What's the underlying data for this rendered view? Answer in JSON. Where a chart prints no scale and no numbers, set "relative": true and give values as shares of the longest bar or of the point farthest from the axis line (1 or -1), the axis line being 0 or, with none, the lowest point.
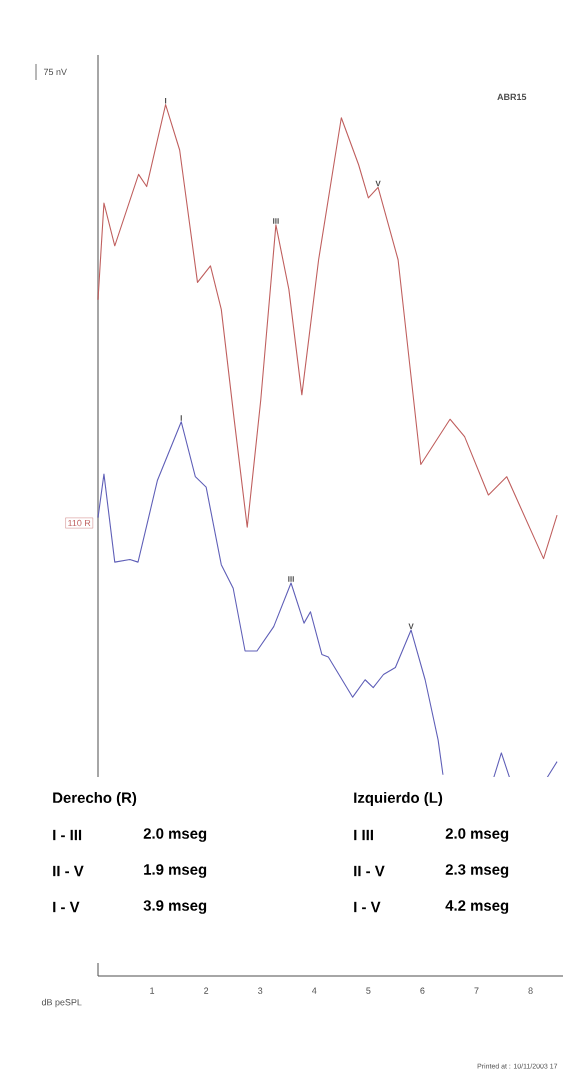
{
  "chart_data": {
    "type": "line",
    "title": "ABR15",
    "relative": true,
    "xlabel": "dB peSPL",
    "xlim": [
      0,
      8.6
    ],
    "xticks": [
      1,
      2,
      3,
      4,
      5,
      6,
      7,
      8
    ],
    "grid": false,
    "marker": "none",
    "line_style": "solid",
    "series": [
      {
        "color": "#c0605f",
        "x": [
          0,
          0.11,
          0.31,
          0.75,
          0.9,
          1.25,
          1.51,
          1.84,
          2.08,
          2.28,
          2.52,
          2.76,
          3.01,
          3.29,
          3.53,
          3.77,
          4.08,
          4.5,
          4.82,
          5.0,
          5.18,
          5.55,
          5.97,
          6.51,
          6.78,
          7.22,
          7.56,
          8.24,
          8.49
        ],
        "values": [
          0.776,
          0.887,
          0.838,
          0.92,
          0.906,
          1.0,
          0.948,
          0.796,
          0.815,
          0.765,
          0.638,
          0.515,
          0.661,
          0.862,
          0.788,
          0.667,
          0.822,
          0.985,
          0.931,
          0.893,
          0.905,
          0.822,
          0.587,
          0.639,
          0.619,
          0.552,
          0.573,
          0.479,
          0.529
        ]
      },
      {
        "color": "#6060b8",
        "x": [
          0,
          0.11,
          0.31,
          0.59,
          0.74,
          1.1,
          1.54,
          1.8,
          2.0,
          2.28,
          2.5,
          2.72,
          2.94,
          3.25,
          3.57,
          3.81,
          3.93,
          4.14,
          4.26,
          4.71,
          4.94,
          5.09,
          5.28,
          5.5,
          5.79,
          6.05,
          6.29,
          6.38,
          null,
          7.32,
          7.46,
          7.61,
          null,
          8.31,
          8.49
        ],
        "values": [
          0.526,
          0.576,
          0.475,
          0.478,
          0.475,
          0.569,
          0.636,
          0.573,
          0.561,
          0.472,
          0.445,
          0.373,
          0.373,
          0.401,
          0.451,
          0.405,
          0.418,
          0.369,
          0.366,
          0.32,
          0.34,
          0.331,
          0.346,
          0.354,
          0.397,
          0.34,
          0.271,
          0.231,
          null,
          0.228,
          0.256,
          0.228,
          null,
          0.228,
          0.246
        ]
      }
    ],
    "annotations": [
      "75 nV",
      "110 R",
      "Printed at : 10/11/2003 17",
      "Derecho (R)",
      "I - III",
      "2.0 mseg",
      "II - V",
      "1.9 mseg",
      "I - V",
      "3.9 mseg",
      "Izquierdo (L)",
      "I  III",
      "2.0 mseg",
      "II - V",
      "2.3 mseg",
      "I - V",
      "4.2 mseg",
      {
        "text": "I",
        "x": 1.25,
        "y": 1.0
      },
      {
        "text": "III",
        "x": 3.29,
        "y": 0.862
      },
      {
        "text": "V",
        "x": 5.18,
        "y": 0.905
      },
      {
        "text": "I",
        "x": 1.54,
        "y": 0.636
      },
      {
        "text": "III",
        "x": 3.57,
        "y": 0.451
      },
      {
        "text": "V",
        "x": 5.79,
        "y": 0.397
      }
    ]
  }
}
